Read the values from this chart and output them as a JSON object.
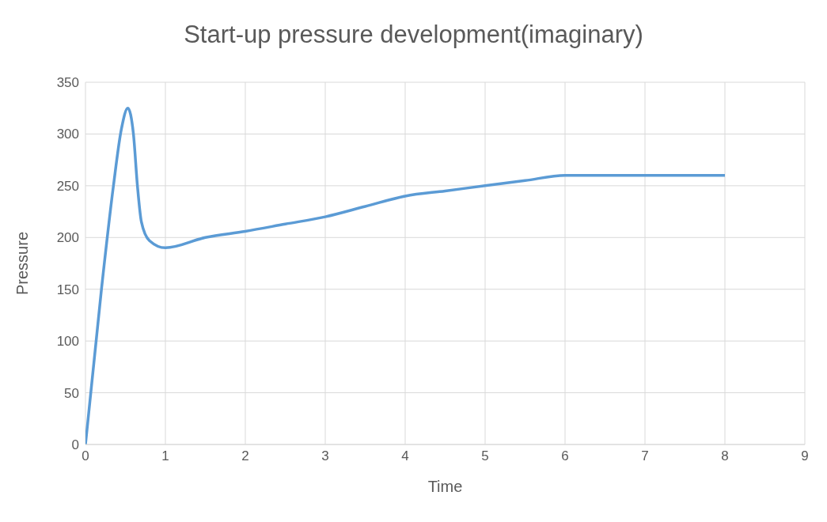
{
  "chart_data": {
    "type": "line",
    "title": "Start-up pressure development(imaginary)",
    "xlabel": "Time",
    "ylabel": "Pressure",
    "x": [
      0,
      0.2,
      0.35,
      0.45,
      0.53,
      0.6,
      0.65,
      0.7,
      0.8,
      1,
      1.5,
      2,
      2.5,
      3,
      3.5,
      4,
      4.5,
      5,
      5.5,
      6,
      7,
      8
    ],
    "series": [
      {
        "color": "#5b9bd5",
        "values": [
          0,
          150,
          250,
          305,
          325,
          300,
          250,
          215,
          197,
          190,
          200,
          206,
          213,
          220,
          230,
          240,
          245,
          250,
          255,
          260,
          260,
          260
        ]
      }
    ],
    "xlim": [
      0,
      9
    ],
    "xticks": [
      0,
      1,
      2,
      3,
      4,
      5,
      6,
      7,
      8,
      9
    ],
    "ylim": [
      0,
      350
    ],
    "yticks": [
      0,
      50,
      100,
      150,
      200,
      250,
      300,
      350
    ],
    "grid": true,
    "legend": false,
    "marker": "none",
    "line_style": "solid"
  }
}
